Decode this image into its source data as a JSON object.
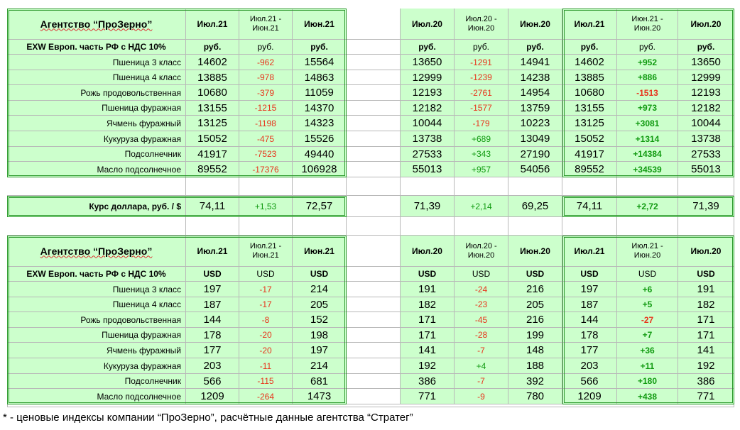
{
  "table1": {
    "title": "Агентство “ПроЗерно”",
    "subtitle": "EXW Европ. часть РФ с НДС 10%",
    "headers": [
      "Июл.21",
      "Июл.21 -\nИюн.21",
      "Июн.21",
      "",
      "Июл.20",
      "Июл.20 -\nИюн.20",
      "Июн.20",
      "Июл.21",
      "Июн.21 -\nИюн.20",
      "Июл.20"
    ],
    "units": [
      "руб.",
      "руб.",
      "руб.",
      "",
      "руб.",
      "руб.",
      "руб.",
      "руб.",
      "руб.",
      "руб."
    ],
    "rows": [
      {
        "label": "Пшеница 3 класс",
        "values": [
          "14602",
          "-962",
          "15564",
          "",
          "13650",
          "-1291",
          "14941",
          "14602",
          "+952",
          "13650"
        ]
      },
      {
        "label": "Пшеница 4 класс",
        "values": [
          "13885",
          "-978",
          "14863",
          "",
          "12999",
          "-1239",
          "14238",
          "13885",
          "+886",
          "12999"
        ]
      },
      {
        "label": "Рожь продовольственная",
        "values": [
          "10680",
          "-379",
          "11059",
          "",
          "12193",
          "-2761",
          "14954",
          "10680",
          "-1513",
          "12193"
        ]
      },
      {
        "label": "Пшеница фуражная",
        "values": [
          "13155",
          "-1215",
          "14370",
          "",
          "12182",
          "-1577",
          "13759",
          "13155",
          "+973",
          "12182"
        ]
      },
      {
        "label": "Ячмень фуражный",
        "values": [
          "13125",
          "-1198",
          "14323",
          "",
          "10044",
          "-179",
          "10223",
          "13125",
          "+3081",
          "10044"
        ]
      },
      {
        "label": "Кукуруза фуражная",
        "values": [
          "15052",
          "-475",
          "15526",
          "",
          "13738",
          "+689",
          "13049",
          "15052",
          "+1314",
          "13738"
        ]
      },
      {
        "label": "Подсолнечник",
        "values": [
          "41917",
          "-7523",
          "49440",
          "",
          "27533",
          "+343",
          "27190",
          "41917",
          "+14384",
          "27533"
        ]
      },
      {
        "label": "Масло подсолнечное",
        "values": [
          "89552",
          "-17376",
          "106928",
          "",
          "55013",
          "+957",
          "54056",
          "89552",
          "+34539",
          "55013"
        ]
      }
    ]
  },
  "rate": {
    "label": "Курс доллара, руб. / $",
    "values": [
      "74,11",
      "+1,53",
      "72,57",
      "",
      "71,39",
      "+2,14",
      "69,25",
      "74,11",
      "+2,72",
      "71,39"
    ]
  },
  "table2": {
    "title": "Агентство “ПроЗерно”",
    "subtitle": "EXW Европ. часть РФ с НДС 10%",
    "headers": [
      "Июл.21",
      "Июл.21 -\nИюн.21",
      "Июн.21",
      "",
      "Июл.20",
      "Июл.20 -\nИюн.20",
      "Июн.20",
      "Июл.21",
      "Июл.21 -\nИюн.20",
      "Июл.20"
    ],
    "units": [
      "USD",
      "USD",
      "USD",
      "",
      "USD",
      "USD",
      "USD",
      "USD",
      "USD",
      "USD"
    ],
    "rows": [
      {
        "label": "Пшеница 3 класс",
        "values": [
          "197",
          "-17",
          "214",
          "",
          "191",
          "-24",
          "216",
          "197",
          "+6",
          "191"
        ]
      },
      {
        "label": "Пшеница 4 класс",
        "values": [
          "187",
          "-17",
          "205",
          "",
          "182",
          "-23",
          "205",
          "187",
          "+5",
          "182"
        ]
      },
      {
        "label": "Рожь продовольственная",
        "values": [
          "144",
          "-8",
          "152",
          "",
          "171",
          "-45",
          "216",
          "144",
          "-27",
          "171"
        ]
      },
      {
        "label": "Пшеница фуражная",
        "values": [
          "178",
          "-20",
          "198",
          "",
          "171",
          "-28",
          "199",
          "178",
          "+7",
          "171"
        ]
      },
      {
        "label": "Ячмень фуражный",
        "values": [
          "177",
          "-20",
          "197",
          "",
          "141",
          "-7",
          "148",
          "177",
          "+36",
          "141"
        ]
      },
      {
        "label": "Кукуруза фуражная",
        "values": [
          "203",
          "-11",
          "214",
          "",
          "192",
          "+4",
          "188",
          "203",
          "+11",
          "192"
        ]
      },
      {
        "label": "Подсолнечник",
        "values": [
          "566",
          "-115",
          "681",
          "",
          "386",
          "-7",
          "392",
          "566",
          "+180",
          "386"
        ]
      },
      {
        "label": "Масло подсолнечное",
        "values": [
          "1209",
          "-264",
          "1473",
          "",
          "771",
          "-9",
          "780",
          "1209",
          "+438",
          "771"
        ]
      }
    ]
  },
  "footnote": "* - ценовые индексы компании “ПроЗерно”, расчётные данные агентства “Стратег”",
  "colors": {
    "cell_bg": "#ccffcc",
    "negative": "#e8341c",
    "positive": "#109a10",
    "frame": "#2e9a2e"
  }
}
